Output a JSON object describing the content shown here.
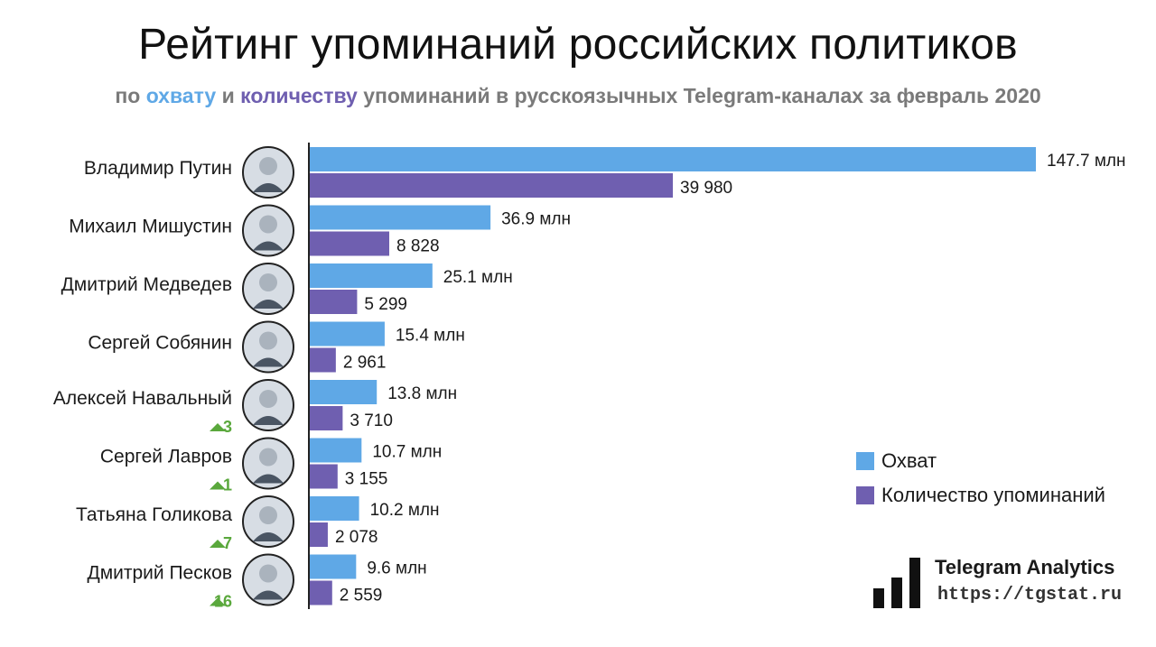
{
  "header": {
    "title": "Рейтинг упоминаний российских политиков",
    "subtitle_parts": {
      "p1": "по ",
      "reach": "охвату",
      "p2": " и ",
      "count": "количеству",
      "p3": " упоминаний в русскоязычных Telegram-каналах за февраль 2020"
    }
  },
  "legend": {
    "reach_label": "Охват",
    "count_label": "Количество упоминаний"
  },
  "colors": {
    "reach": "#5fa8e6",
    "count": "#6f5fb0",
    "up": "#5aa83c"
  },
  "brand": {
    "name": "Telegram Analytics",
    "url": "https://tgstat.ru"
  },
  "chart_data": {
    "type": "bar",
    "orientation": "horizontal",
    "categories": [
      "Владимир Путин",
      "Михаил Мишустин",
      "Дмитрий Медведев",
      "Сергей Собянин",
      "Алексей Навальный",
      "Сергей Лавров",
      "Татьяна Голикова",
      "Дмитрий Песков"
    ],
    "rank_change": [
      "",
      "",
      "",
      "",
      "3",
      "1",
      "7",
      "16"
    ],
    "series": [
      {
        "name": "Охват",
        "values": [
          147.7,
          36.9,
          25.1,
          15.4,
          13.8,
          10.7,
          10.2,
          9.6
        ],
        "labels": [
          "147.7 млн",
          "36.9 млн",
          "25.1 млн",
          "15.4 млн",
          "13.8 млн",
          "10.7 млн",
          "10.2 млн",
          "9.6 млн"
        ]
      },
      {
        "name": "Количество упоминаний",
        "values": [
          39980,
          8828,
          5299,
          2961,
          3710,
          3155,
          2078,
          2559
        ],
        "labels": [
          "39 980",
          "8 828",
          "5 299",
          "2 961",
          "3 710",
          "3 155",
          "2 078",
          "2 559"
        ]
      }
    ],
    "legend_position": "right",
    "grid": false
  }
}
